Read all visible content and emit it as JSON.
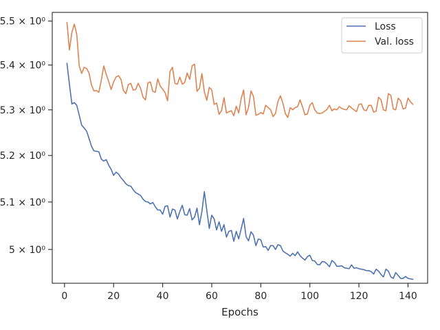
{
  "chart_data": {
    "type": "line",
    "title": "",
    "xlabel": "Epochs",
    "ylabel": "",
    "xlim": [
      -5,
      148
    ],
    "ylim": [
      4.93,
      5.52
    ],
    "yscale": "log",
    "grid": false,
    "legend_position": "top-right",
    "x_ticks": [
      0,
      20,
      40,
      60,
      80,
      100,
      120,
      140
    ],
    "x_tick_labels": [
      "0",
      "20",
      "40",
      "60",
      "80",
      "100",
      "120",
      "140"
    ],
    "y_ticks": [
      5.0,
      5.1,
      5.2,
      5.3,
      5.4,
      5.5
    ],
    "y_tick_labels": [
      "5 × 10⁰",
      "5.1 × 10⁰",
      "5.2 × 10⁰",
      "5.3 × 10⁰",
      "5.4 × 10⁰",
      "5.5 × 10⁰"
    ],
    "colors": {
      "loss": "#4c72b0",
      "val_loss": "#dd8452",
      "axis": "#262626"
    },
    "series": [
      {
        "name": "Loss",
        "x": [
          1,
          2,
          3,
          4,
          5,
          6,
          7,
          8,
          9,
          10,
          11,
          12,
          13,
          14,
          15,
          16,
          17,
          18,
          19,
          20,
          21,
          22,
          23,
          24,
          25,
          26,
          27,
          28,
          29,
          30,
          31,
          32,
          33,
          34,
          35,
          36,
          37,
          38,
          39,
          40,
          41,
          42,
          43,
          44,
          45,
          46,
          47,
          48,
          49,
          50,
          51,
          52,
          53,
          54,
          55,
          56,
          57,
          58,
          59,
          60,
          61,
          62,
          63,
          64,
          65,
          66,
          67,
          68,
          69,
          70,
          71,
          72,
          73,
          74,
          75,
          76,
          77,
          78,
          79,
          80,
          81,
          82,
          83,
          84,
          85,
          86,
          87,
          88,
          89,
          90,
          91,
          92,
          93,
          94,
          95,
          96,
          97,
          98,
          99,
          100,
          101,
          102,
          103,
          104,
          105,
          106,
          107,
          108,
          109,
          110,
          111,
          112,
          113,
          114,
          115,
          116,
          117,
          118,
          119,
          120,
          121,
          122,
          123,
          124,
          125,
          126,
          127,
          128,
          129,
          130,
          131,
          132,
          133,
          134,
          135,
          136,
          137,
          138,
          139,
          140,
          141,
          142
        ],
        "values": [
          5.404,
          5.357,
          5.313,
          5.316,
          5.31,
          5.288,
          5.266,
          5.26,
          5.253,
          5.237,
          5.22,
          5.21,
          5.209,
          5.208,
          5.192,
          5.188,
          5.191,
          5.179,
          5.17,
          5.157,
          5.164,
          5.16,
          5.152,
          5.146,
          5.139,
          5.135,
          5.134,
          5.126,
          5.12,
          5.117,
          5.114,
          5.106,
          5.101,
          5.1,
          5.096,
          5.099,
          5.09,
          5.083,
          5.083,
          5.074,
          5.091,
          5.092,
          5.068,
          5.085,
          5.083,
          5.064,
          5.08,
          5.093,
          5.073,
          5.072,
          5.086,
          5.062,
          5.068,
          5.087,
          5.052,
          5.08,
          5.122,
          5.082,
          5.044,
          5.072,
          5.064,
          5.041,
          5.058,
          5.038,
          5.052,
          5.026,
          5.038,
          5.04,
          5.017,
          5.038,
          5.022,
          5.043,
          5.065,
          5.027,
          5.018,
          5.037,
          5.03,
          5.008,
          5.022,
          5.02,
          5.005,
          5.006,
          4.998,
          5.008,
          5.008,
          5.0,
          5.01,
          5.008,
          4.997,
          4.993,
          4.99,
          4.986,
          4.992,
          4.987,
          4.995,
          4.987,
          4.982,
          4.978,
          4.985,
          4.988,
          4.977,
          4.976,
          4.969,
          4.968,
          4.975,
          4.974,
          4.97,
          4.964,
          4.977,
          4.973,
          4.965,
          4.965,
          4.966,
          4.962,
          4.961,
          4.96,
          4.968,
          4.961,
          4.962,
          4.96,
          4.959,
          4.958,
          4.956,
          4.956,
          4.954,
          4.949,
          4.959,
          4.955,
          4.948,
          4.943,
          4.959,
          4.955,
          4.943,
          4.94,
          4.952,
          4.946,
          4.94,
          4.94,
          4.944,
          4.94,
          4.939,
          4.938
        ]
      },
      {
        "name": "Val. loss",
        "x": [
          1,
          2,
          3,
          4,
          5,
          6,
          7,
          8,
          9,
          10,
          11,
          12,
          13,
          14,
          15,
          16,
          17,
          18,
          19,
          20,
          21,
          22,
          23,
          24,
          25,
          26,
          27,
          28,
          29,
          30,
          31,
          32,
          33,
          34,
          35,
          36,
          37,
          38,
          39,
          40,
          41,
          42,
          43,
          44,
          45,
          46,
          47,
          48,
          49,
          50,
          51,
          52,
          53,
          54,
          55,
          56,
          57,
          58,
          59,
          60,
          61,
          62,
          63,
          64,
          65,
          66,
          67,
          68,
          69,
          70,
          71,
          72,
          73,
          74,
          75,
          76,
          77,
          78,
          79,
          80,
          81,
          82,
          83,
          84,
          85,
          86,
          87,
          88,
          89,
          90,
          91,
          92,
          93,
          94,
          95,
          96,
          97,
          98,
          99,
          100,
          101,
          102,
          103,
          104,
          105,
          106,
          107,
          108,
          109,
          110,
          111,
          112,
          113,
          114,
          115,
          116,
          117,
          118,
          119,
          120,
          121,
          122,
          123,
          124,
          125,
          126,
          127,
          128,
          129,
          130,
          131,
          132,
          133,
          134,
          135,
          136,
          137,
          138,
          139,
          140,
          141,
          142
        ],
        "values": [
          5.497,
          5.434,
          5.474,
          5.493,
          5.469,
          5.398,
          5.381,
          5.395,
          5.392,
          5.382,
          5.355,
          5.342,
          5.343,
          5.339,
          5.366,
          5.398,
          5.379,
          5.363,
          5.345,
          5.362,
          5.373,
          5.376,
          5.368,
          5.343,
          5.336,
          5.356,
          5.359,
          5.344,
          5.345,
          5.359,
          5.348,
          5.328,
          5.322,
          5.36,
          5.362,
          5.341,
          5.339,
          5.369,
          5.353,
          5.346,
          5.338,
          5.32,
          5.385,
          5.395,
          5.359,
          5.357,
          5.373,
          5.357,
          5.361,
          5.382,
          5.368,
          5.398,
          5.402,
          5.341,
          5.348,
          5.381,
          5.34,
          5.321,
          5.35,
          5.344,
          5.312,
          5.315,
          5.29,
          5.298,
          5.327,
          5.293,
          5.296,
          5.298,
          5.287,
          5.308,
          5.293,
          5.325,
          5.344,
          5.289,
          5.305,
          5.342,
          5.33,
          5.288,
          5.29,
          5.294,
          5.291,
          5.31,
          5.305,
          5.3,
          5.285,
          5.292,
          5.319,
          5.331,
          5.315,
          5.292,
          5.283,
          5.305,
          5.3,
          5.305,
          5.307,
          5.322,
          5.307,
          5.289,
          5.291,
          5.31,
          5.316,
          5.3,
          5.293,
          5.292,
          5.293,
          5.297,
          5.301,
          5.31,
          5.298,
          5.302,
          5.3,
          5.307,
          5.303,
          5.301,
          5.3,
          5.309,
          5.304,
          5.3,
          5.296,
          5.312,
          5.313,
          5.3,
          5.298,
          5.31,
          5.31,
          5.295,
          5.297,
          5.328,
          5.322,
          5.3,
          5.298,
          5.336,
          5.332,
          5.302,
          5.3,
          5.326,
          5.32,
          5.302,
          5.304,
          5.326,
          5.318,
          5.312
        ]
      }
    ]
  }
}
